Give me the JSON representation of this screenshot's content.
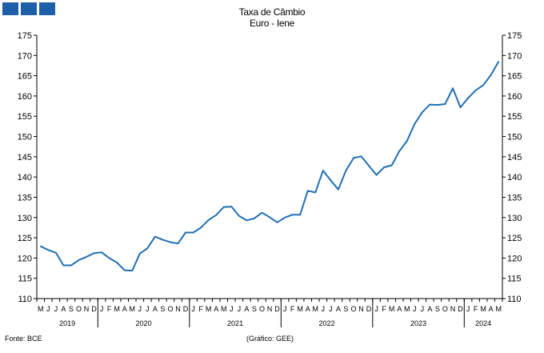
{
  "logo": {
    "icon": "institution-logo-squares",
    "color": "#1f5ea8"
  },
  "title": {
    "line1": "Taxa de Câmbio",
    "line2": "Euro - Iene"
  },
  "footer": {
    "source": "Fonte: BCE",
    "credit": "(Gráfico: GEE)"
  },
  "chart_data": {
    "type": "line",
    "title": "Taxa de Câmbio Euro - Iene",
    "ylim": [
      110,
      175
    ],
    "y_ticks": [
      110,
      115,
      120,
      125,
      130,
      135,
      140,
      145,
      150,
      155,
      160,
      165,
      170,
      175
    ],
    "grid": false,
    "line_color": "#1f6fb5",
    "x": [
      "2019-05",
      "2019-06",
      "2019-07",
      "2019-08",
      "2019-09",
      "2019-10",
      "2019-11",
      "2019-12",
      "2020-01",
      "2020-02",
      "2020-03",
      "2020-04",
      "2020-05",
      "2020-06",
      "2020-07",
      "2020-08",
      "2020-09",
      "2020-10",
      "2020-11",
      "2020-12",
      "2021-01",
      "2021-02",
      "2021-03",
      "2021-04",
      "2021-05",
      "2021-06",
      "2021-07",
      "2021-08",
      "2021-09",
      "2021-10",
      "2021-11",
      "2021-12",
      "2022-01",
      "2022-02",
      "2022-03",
      "2022-04",
      "2022-05",
      "2022-06",
      "2022-07",
      "2022-08",
      "2022-09",
      "2022-10",
      "2022-11",
      "2022-12",
      "2023-01",
      "2023-02",
      "2023-03",
      "2023-04",
      "2023-05",
      "2023-06",
      "2023-07",
      "2023-08",
      "2023-09",
      "2023-10",
      "2023-11",
      "2023-12",
      "2024-01",
      "2024-02",
      "2024-03",
      "2024-04",
      "2024-05"
    ],
    "month_labels": [
      "M",
      "J",
      "J",
      "A",
      "S",
      "O",
      "N",
      "D",
      "J",
      "F",
      "M",
      "A",
      "M",
      "J",
      "J",
      "A",
      "S",
      "O",
      "N",
      "D",
      "J",
      "F",
      "M",
      "A",
      "M",
      "J",
      "J",
      "A",
      "S",
      "O",
      "N",
      "D",
      "J",
      "F",
      "M",
      "A",
      "M",
      "J",
      "J",
      "A",
      "S",
      "O",
      "N",
      "D",
      "J",
      "F",
      "M",
      "A",
      "M",
      "J",
      "J",
      "A",
      "S",
      "O",
      "N",
      "D",
      "J",
      "F",
      "M",
      "A",
      "M"
    ],
    "years": [
      {
        "label": "2019",
        "start": 0,
        "end": 7
      },
      {
        "label": "2020",
        "start": 8,
        "end": 19
      },
      {
        "label": "2021",
        "start": 20,
        "end": 31
      },
      {
        "label": "2022",
        "start": 32,
        "end": 43
      },
      {
        "label": "2023",
        "start": 44,
        "end": 55
      },
      {
        "label": "2024",
        "start": 56,
        "end": 60
      }
    ],
    "series": [
      {
        "values": [
          122.9,
          122.0,
          121.3,
          118.2,
          118.2,
          119.5,
          120.3,
          121.2,
          121.4,
          120.0,
          118.9,
          117.0,
          116.9,
          121.1,
          122.4,
          125.3,
          124.5,
          123.9,
          123.6,
          126.3,
          126.3,
          127.5,
          129.4,
          130.6,
          132.6,
          132.7,
          130.4,
          129.3,
          129.8,
          131.2,
          130.1,
          128.8,
          130.0,
          130.7,
          130.7,
          136.6,
          136.2,
          141.6,
          139.2,
          136.9,
          141.6,
          144.7,
          145.1,
          142.8,
          140.5,
          142.4,
          142.9,
          146.4,
          148.9,
          153.1,
          156.0,
          157.9,
          157.8,
          158.0,
          161.9,
          157.2,
          159.5,
          161.4,
          162.7,
          165.2,
          168.5
        ]
      }
    ]
  }
}
